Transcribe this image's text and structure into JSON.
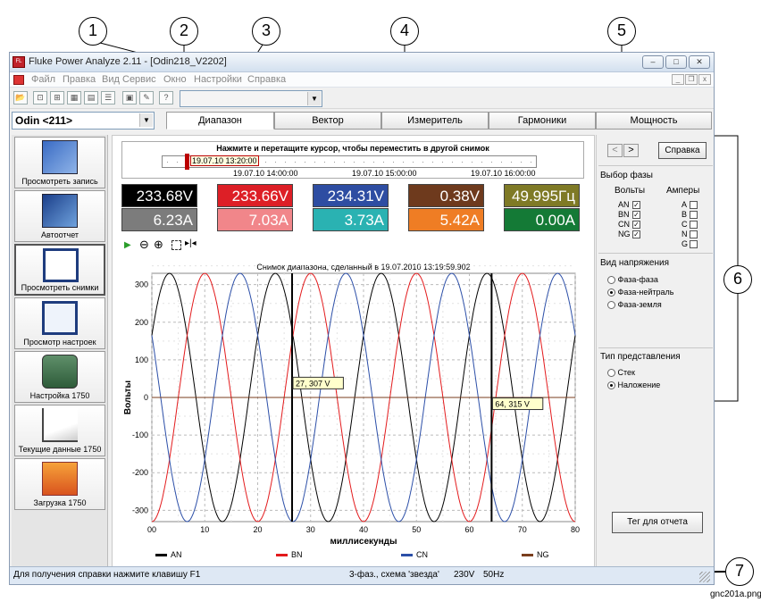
{
  "callouts": [
    "1",
    "2",
    "3",
    "4",
    "5",
    "6",
    "7"
  ],
  "window": {
    "title": "Fluke Power Analyze 2.11 - [Odin218_V2202]",
    "app_icon": "fluke-app-icon",
    "controls": [
      "minimize-icon",
      "maximize-icon",
      "close-icon"
    ]
  },
  "menu": [
    "Файл",
    "Правка",
    "Вид",
    "Сервис",
    "Окно",
    "Настройки",
    "Справка"
  ],
  "toolbar": {
    "icons": [
      "open-folder-icon",
      "export-icon",
      "import-icon",
      "grid-icon",
      "table-icon",
      "list-icon",
      "print-icon",
      "edit-icon",
      "help-cursor-icon"
    ],
    "combo_value": ""
  },
  "device": {
    "selected": "Odin <211>"
  },
  "tabs": [
    {
      "label": "Диапазон",
      "active": true
    },
    {
      "label": "Вектор",
      "active": false
    },
    {
      "label": "Измеритель",
      "active": false
    },
    {
      "label": "Гармоники",
      "active": false
    },
    {
      "label": "Мощность",
      "active": false
    }
  ],
  "sidebar": [
    {
      "label": "Просмотреть запись",
      "icon": "record-view-icon"
    },
    {
      "label": "Автоотчет",
      "icon": "auto-report-icon"
    },
    {
      "label": "Просмотреть снимки",
      "icon": "snapshots-icon"
    },
    {
      "label": "Просмотр настроек",
      "icon": "settings-view-icon"
    },
    {
      "label": "Настройка 1750",
      "icon": "setup-1750-icon"
    },
    {
      "label": "Текущие данные 1750",
      "icon": "live-data-1750-icon"
    },
    {
      "label": "Загрузка 1750",
      "icon": "download-1750-icon"
    }
  ],
  "timeline": {
    "hint": "Нажмите и перетащите курсор, чтобы переместить в другой снимок",
    "cursor_label": "19.07.10 13:20:00",
    "ticks": [
      "19.07.10 14:00:00",
      "19.07.10 15:00:00",
      "19.07.10 16:00:00"
    ]
  },
  "meters": {
    "row1": [
      {
        "value": "233.68V",
        "color": "#000000"
      },
      {
        "value": "233.66V",
        "color": "#dd1f26"
      },
      {
        "value": "234.31V",
        "color": "#2e4da2"
      },
      {
        "value": "0.38V",
        "color": "#6e3a1d"
      },
      {
        "value": "49.995Гц",
        "color": "#7f7a26"
      }
    ],
    "row2": [
      {
        "value": "6.23A",
        "color": "#7c7c7c"
      },
      {
        "value": "7.03A",
        "color": "#f1868a"
      },
      {
        "value": "3.73A",
        "color": "#2ab2b2"
      },
      {
        "value": "5.42A",
        "color": "#ef7d24"
      },
      {
        "value": "0.00A",
        "color": "#147a36"
      }
    ]
  },
  "chart_tools": [
    "play-icon",
    "zoom-out-icon",
    "zoom-in-icon",
    "select-box-icon",
    "fit-cursor-icon"
  ],
  "chart_data": {
    "type": "line",
    "title": "Снимок диапазона, сделанный в 19.07.2010 13:19:59.902",
    "xlabel": "миллисекунды",
    "ylabel": "Вольты",
    "xlim": [
      0,
      80
    ],
    "ylim": [
      -330,
      330
    ],
    "x_ticks": [
      "00",
      "10",
      "20",
      "30",
      "40",
      "50",
      "60",
      "70",
      "80"
    ],
    "y_ticks": [
      "300",
      "200",
      "100",
      "0",
      "-100",
      "-200",
      "-300"
    ],
    "grid": true,
    "amplitude": 330,
    "frequency_hz": 50,
    "series": [
      {
        "name": "AN",
        "color": "#000000",
        "phase_deg": 30
      },
      {
        "name": "BN",
        "color": "#e31a1c",
        "phase_deg": -90
      },
      {
        "name": "CN",
        "color": "#2c4fa8",
        "phase_deg": 150
      },
      {
        "name": "NG",
        "color": "#7a3e1e",
        "value": 0
      }
    ],
    "cursors": [
      {
        "x": 26.5,
        "label": "27, 307 V"
      },
      {
        "x": 64.2,
        "label": "64, 315 V"
      }
    ],
    "legend_position": "bottom"
  },
  "right_panel": {
    "nav_prev": "<",
    "nav_next": ">",
    "help_button": "Справка",
    "phase_title": "Выбор фазы",
    "volts_header": "Вольты",
    "amps_header": "Амперы",
    "volts": [
      {
        "label": "AN",
        "checked": true
      },
      {
        "label": "BN",
        "checked": true
      },
      {
        "label": "CN",
        "checked": true
      },
      {
        "label": "NG",
        "checked": true
      }
    ],
    "amps": [
      {
        "label": "A",
        "checked": false
      },
      {
        "label": "B",
        "checked": false
      },
      {
        "label": "C",
        "checked": false
      },
      {
        "label": "N",
        "checked": false
      },
      {
        "label": "G",
        "checked": false
      }
    ],
    "voltage_view_title": "Вид напряжения",
    "voltage_views": [
      {
        "label": "Фаза-фаза",
        "on": false
      },
      {
        "label": "Фаза-нейтраль",
        "on": true
      },
      {
        "label": "Фаза-земля",
        "on": false
      }
    ],
    "display_title": "Тип представления",
    "displays": [
      {
        "label": "Стек",
        "on": false
      },
      {
        "label": "Наложение",
        "on": true
      }
    ],
    "report_button": "Тег для отчета"
  },
  "status": {
    "hint": "Для получения справки нажмите клавишу F1",
    "config": "3-фаз., схема 'звезда'",
    "voltage": "230V",
    "freq": "50Hz"
  },
  "filename": "gnc201a.png"
}
